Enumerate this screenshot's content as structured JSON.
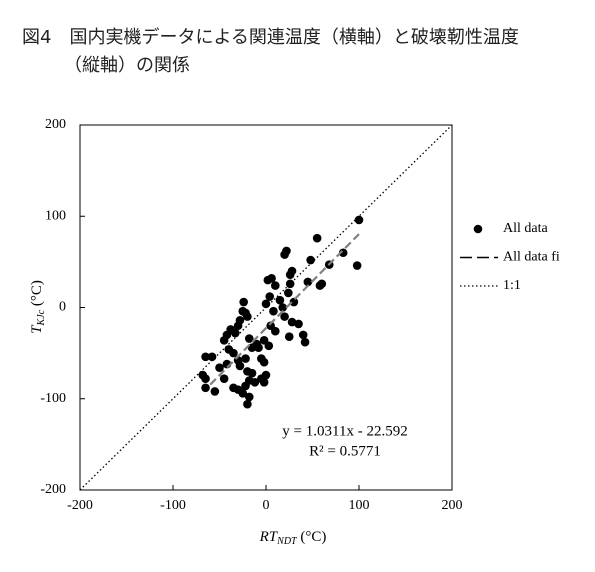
{
  "chart_data": {
    "type": "scatter",
    "title": [
      "図4　国内実機データによる関連温度（横軸）と破壊靭性温度",
      "（縦軸）の関係"
    ],
    "xlabel": {
      "main": "RT",
      "sub": "NDT",
      "unit": " (°C)"
    },
    "ylabel": {
      "main": "T",
      "sub": "KJc",
      "unit": " (°C)"
    },
    "xlim": [
      -200,
      200
    ],
    "xticks": [
      -200,
      -100,
      0,
      100,
      200
    ],
    "ylim": [
      -200,
      200
    ],
    "yticks": [
      -200,
      -100,
      0,
      100,
      200
    ],
    "series": [
      {
        "name": "All data",
        "color": "#000000",
        "kind": "points",
        "x": [
          100,
          98,
          83,
          68,
          60,
          58,
          55,
          48,
          45,
          30,
          28,
          26,
          22,
          20,
          26,
          24,
          18,
          15,
          20,
          28,
          35,
          40,
          42,
          25,
          10,
          6,
          2,
          4,
          0,
          8,
          5,
          10,
          3,
          -2,
          -5,
          -2,
          0,
          -5,
          -8,
          -15,
          -18,
          -20,
          -22,
          -24,
          -25,
          -28,
          -30,
          -33,
          -38,
          -42,
          -45,
          -40,
          -35,
          -30,
          -28,
          -22,
          -20,
          -18,
          -15,
          -22,
          -25,
          -18,
          -20,
          -30,
          -35,
          -45,
          -50,
          -55,
          -65,
          -65,
          -65,
          -58,
          -68,
          -42,
          -12,
          -2,
          -10
        ],
        "values": [
          96,
          46,
          60,
          47,
          26,
          24,
          76,
          52,
          28,
          6,
          40,
          36,
          62,
          58,
          26,
          16,
          0,
          8,
          -10,
          -16,
          -18,
          -30,
          -38,
          -32,
          24,
          32,
          30,
          12,
          4,
          -4,
          -20,
          -26,
          -42,
          -36,
          -56,
          -60,
          -74,
          -78,
          -44,
          -44,
          -34,
          -10,
          -6,
          6,
          -4,
          -14,
          -20,
          -28,
          -24,
          -30,
          -36,
          -46,
          -50,
          -58,
          -64,
          -56,
          -70,
          -80,
          -72,
          -86,
          -94,
          -98,
          -106,
          -90,
          -88,
          -78,
          -66,
          -92,
          -78,
          -88,
          -54,
          -54,
          -74,
          -62,
          -82,
          -82,
          -40
        ]
      },
      {
        "name": "All data fi",
        "color": "#808080",
        "kind": "dashed",
        "x": [
          -60,
          100
        ],
        "values": [
          -84.5,
          80.5
        ]
      },
      {
        "name": "1:1",
        "color": "#000000",
        "kind": "dotted",
        "x": [
          -200,
          200
        ],
        "values": [
          -200,
          200
        ]
      }
    ],
    "annotations": [
      "y = 1.0311x - 22.592",
      "R² = 0.5771"
    ]
  }
}
